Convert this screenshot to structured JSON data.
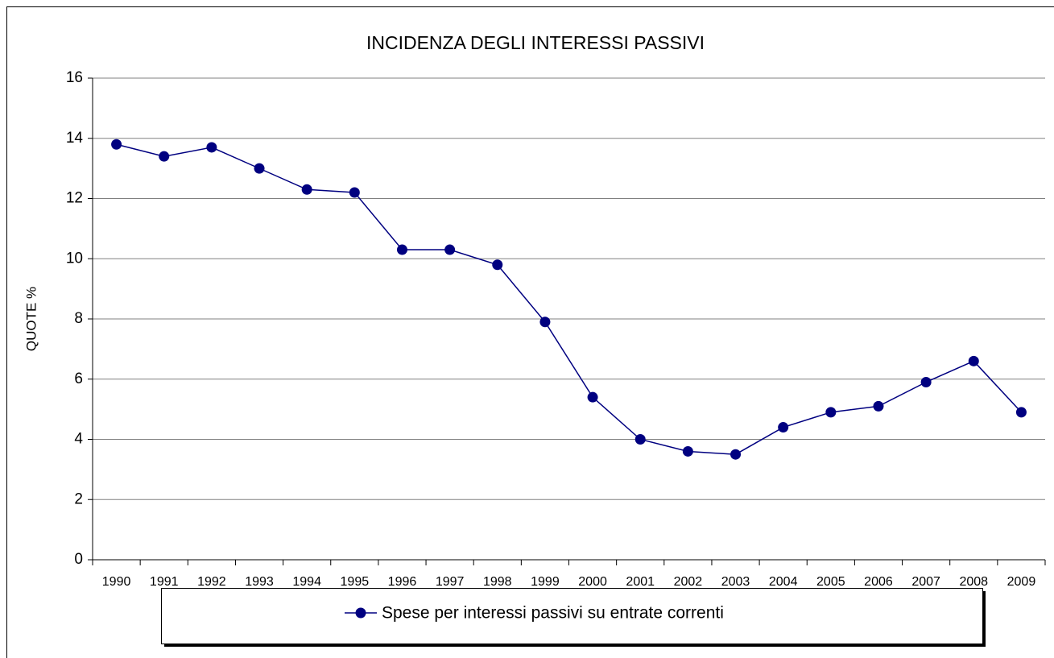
{
  "chart_data": {
    "type": "line",
    "title": "INCIDENZA DEGLI INTERESSI PASSIVI",
    "y_label": "QUOTE %",
    "categories": [
      "1990",
      "1991",
      "1992",
      "1993",
      "1994",
      "1995",
      "1996",
      "1997",
      "1998",
      "1999",
      "2000",
      "2001",
      "2002",
      "2003",
      "2004",
      "2005",
      "2006",
      "2007",
      "2008",
      "2009"
    ],
    "series": [
      {
        "name": "Spese per interessi passivi su entrate correnti",
        "color": "#000080",
        "values": [
          13.8,
          13.4,
          13.7,
          13.0,
          12.3,
          12.2,
          10.3,
          10.3,
          9.8,
          7.9,
          5.4,
          4.0,
          3.6,
          3.5,
          4.4,
          4.9,
          5.1,
          5.9,
          6.6,
          4.9
        ]
      }
    ],
    "ylim": [
      0,
      16
    ],
    "yticks": [
      0,
      2,
      4,
      6,
      8,
      10,
      12,
      14,
      16
    ],
    "grid": true,
    "legend": "bottom"
  }
}
